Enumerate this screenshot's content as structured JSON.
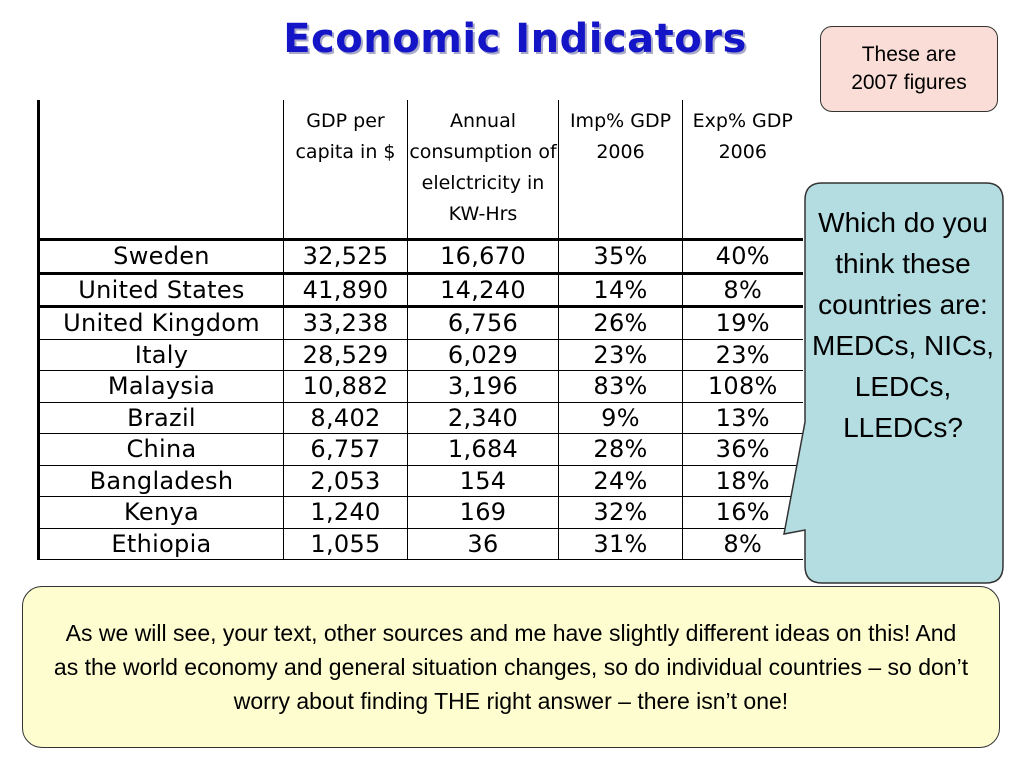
{
  "slide": {
    "title": "Economic Indicators",
    "note": "These are 2007 figures",
    "bubble_text": "Which do you think these countries are: MEDCs, NICs, LEDCs, LLEDCs?",
    "footer_text": "As we will see, your text, other sources and me have slightly different ideas on this! And as the world economy and general situation changes, so do individual countries – so don’t worry about finding THE right answer – there isn’t one!"
  },
  "table": {
    "headers": [
      "",
      "GDP per capita in $",
      "Annual consumption of elelctricity in KW-Hrs",
      "Imp% GDP 2006",
      "Exp% GDP 2006"
    ],
    "rows": [
      [
        "Sweden",
        "32,525",
        "16,670",
        "35%",
        "40%"
      ],
      [
        "United States",
        "41,890",
        "14,240",
        "14%",
        "8%"
      ],
      [
        "United Kingdom",
        "33,238",
        "6,756",
        "26%",
        "19%"
      ],
      [
        "Italy",
        "28,529",
        "6,029",
        "23%",
        "23%"
      ],
      [
        "Malaysia",
        "10,882",
        "3,196",
        "83%",
        "108%"
      ],
      [
        "Brazil",
        "8,402",
        "2,340",
        "9%",
        "13%"
      ],
      [
        "China",
        "6,757",
        "1,684",
        "28%",
        "36%"
      ],
      [
        "Bangladesh",
        "2,053",
        "154",
        "24%",
        "18%"
      ],
      [
        "Kenya",
        "1,240",
        "169",
        "32%",
        "16%"
      ],
      [
        "Ethiopia",
        "1,055",
        "36",
        "31%",
        "8%"
      ]
    ]
  },
  "colors": {
    "title": "#1515c8",
    "note_bg": "#f9ddd6",
    "bubble_bg": "#b4dde2",
    "footer_bg": "#fdfdcf"
  }
}
